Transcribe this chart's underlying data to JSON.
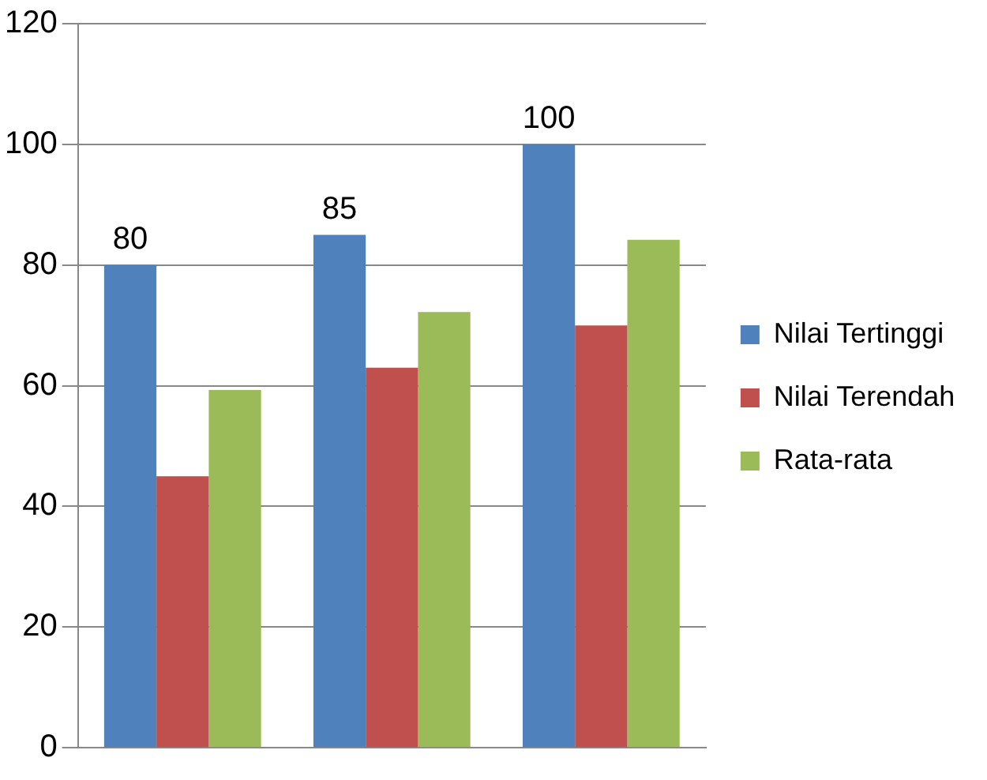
{
  "chart_data": {
    "type": "bar",
    "categories": [
      null,
      null,
      null
    ],
    "series": [
      {
        "name": "Nilai Tertinggi",
        "color": "#4f81bd",
        "values": [
          80,
          85,
          100
        ],
        "value_labels": [
          "80",
          "85",
          "100"
        ]
      },
      {
        "name": "Nilai Terendah",
        "color": "#c0504d",
        "values": [
          45,
          63,
          70
        ]
      },
      {
        "name": "Rata-rata",
        "color": "#9bbb59",
        "values": [
          59.3,
          72.2,
          84.2
        ]
      }
    ],
    "ylim": [
      0,
      120
    ],
    "yticks": [
      0,
      20,
      40,
      60,
      80,
      100,
      120
    ],
    "grid": "y",
    "legend": "right"
  }
}
